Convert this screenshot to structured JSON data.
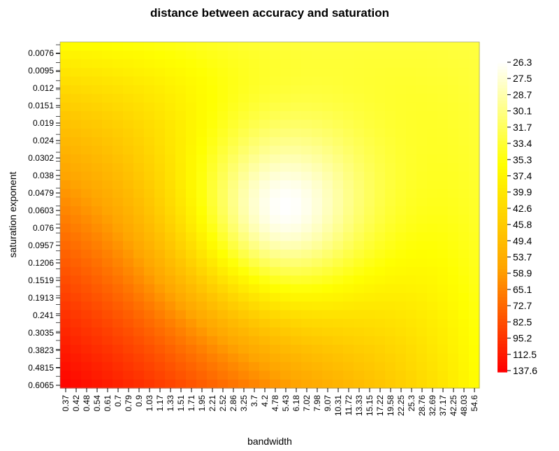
{
  "chart_data": {
    "type": "heatmap",
    "title": "distance between accuracy and saturation",
    "xlabel": "bandwidth",
    "ylabel": "saturation exponent",
    "x_tick_labels": [
      "0.37",
      "0.42",
      "0.48",
      "0.54",
      "0.61",
      "0.7",
      "0.79",
      "0.9",
      "1.03",
      "1.17",
      "1.33",
      "1.51",
      "1.71",
      "1.95",
      "2.21",
      "2.52",
      "2.86",
      "3.25",
      "3.7",
      "4.2",
      "4.78",
      "5.43",
      "6.18",
      "7.02",
      "7.98",
      "9.07",
      "10.31",
      "11.72",
      "13.33",
      "15.15",
      "17.22",
      "19.58",
      "22.25",
      "25.3",
      "28.76",
      "32.69",
      "37.17",
      "42.25",
      "48.03",
      "54.6"
    ],
    "y_tick_labels": [
      "0.0076",
      "0.0095",
      "0.012",
      "0.0151",
      "0.019",
      "0.024",
      "0.0302",
      "0.038",
      "0.0479",
      "0.0603",
      "0.076",
      "0.0957",
      "0.1206",
      "0.1519",
      "0.1913",
      "0.241",
      "0.3035",
      "0.3823",
      "0.4815",
      "0.6065"
    ],
    "color_scale": {
      "labels": [
        "26.3",
        "27.5",
        "28.7",
        "30.1",
        "31.7",
        "33.4",
        "35.3",
        "37.4",
        "39.9",
        "42.6",
        "45.8",
        "49.4",
        "53.7",
        "58.9",
        "65.1",
        "72.7",
        "82.5",
        "95.2",
        "112.5",
        "137.6"
      ],
      "min": 26.3,
      "max": 137.6,
      "colors": [
        "#ffffff",
        "#ffff00",
        "#ffa500",
        "#ff0000"
      ]
    },
    "grid_shape": {
      "columns": 40,
      "rows": 40
    },
    "minimum_location": {
      "bandwidth": "5.43",
      "saturation_exponent": "0.0603",
      "value": 26.3
    },
    "corner_values": {
      "low_bandwidth_high_exponent": 137.6,
      "low_bandwidth_low_exponent": 45.8,
      "high_bandwidth_low_exponent": 39.9,
      "high_bandwidth_high_exponent": 45.8
    },
    "legend_position": "right",
    "grid": false
  }
}
